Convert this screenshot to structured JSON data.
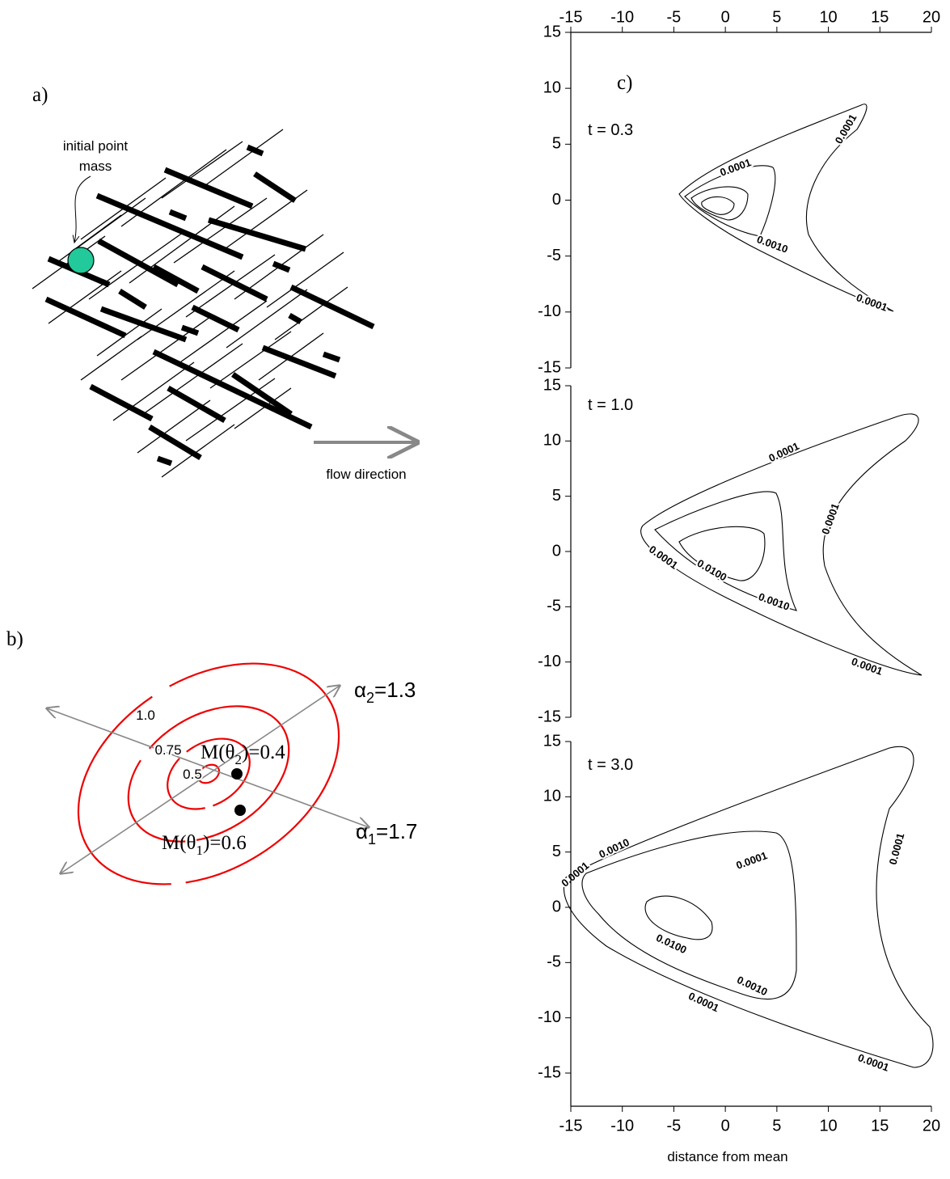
{
  "panel_a": {
    "label": "a)",
    "annotation": [
      "initial point",
      "mass"
    ],
    "flow_label": "flow direction"
  },
  "panel_b": {
    "label": "b)",
    "contour_labels": [
      "1.0",
      "0.75",
      "0.5"
    ],
    "points": [
      {
        "prefix": "M(θ",
        "sub": "2",
        "suffix": ")=0.4"
      },
      {
        "prefix": "M(θ",
        "sub": "1",
        "suffix": ")=0.6"
      }
    ],
    "axes": [
      {
        "prefix": "α",
        "sub": "2",
        "suffix": "=1.3"
      },
      {
        "prefix": "α",
        "sub": "1",
        "suffix": "=1.7"
      }
    ]
  },
  "panel_c": {
    "label": "c)",
    "x_label": "distance from mean",
    "xlim": [
      -15,
      20
    ],
    "xticks": [
      -15,
      -10,
      -5,
      0,
      5,
      10,
      15,
      20
    ],
    "plots": [
      {
        "title": "t = 0.3",
        "ylim": [
          -15,
          15
        ],
        "yticks": [
          -15,
          -10,
          -5,
          0,
          5,
          10,
          15
        ],
        "contour_labels": [
          "0.0001",
          "0.0001",
          "0.0010",
          "0.0001"
        ]
      },
      {
        "title": "t = 1.0",
        "ylim": [
          -15,
          15
        ],
        "yticks": [
          -15,
          -10,
          -5,
          0,
          5,
          10,
          15
        ],
        "contour_labels": [
          "0.0001",
          "0.0001",
          "0.0001",
          "0.0100",
          "0.0010",
          "0.0001"
        ]
      },
      {
        "title": "t = 3.0",
        "ylim": [
          -18,
          15
        ],
        "yticks": [
          -15,
          -10,
          -5,
          0,
          5,
          10,
          15
        ],
        "contour_labels": [
          "0.0001",
          "0.0001",
          "0.0001",
          "0.0010",
          "0.0100",
          "0.0010",
          "0.0001",
          "0.0001"
        ]
      }
    ]
  }
}
